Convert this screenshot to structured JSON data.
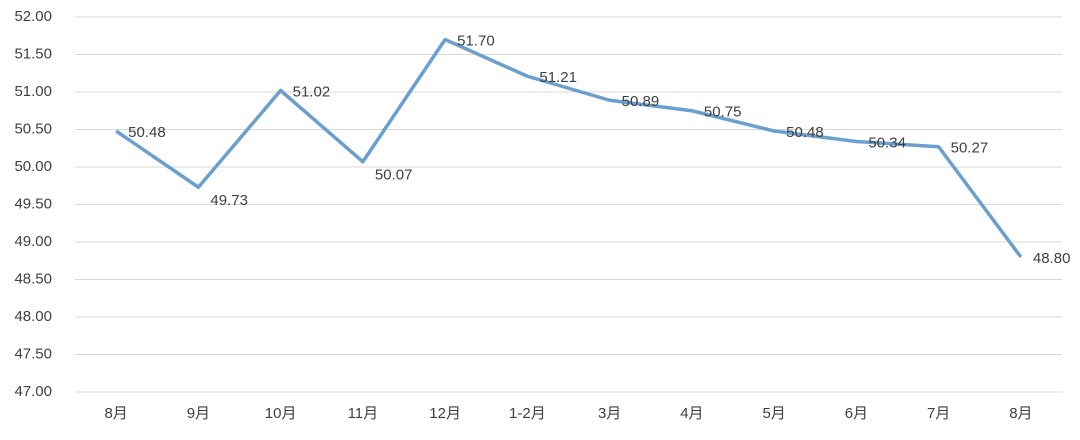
{
  "chart_data": {
    "type": "line",
    "categories": [
      "8月",
      "9月",
      "10月",
      "11月",
      "12月",
      "1-2月",
      "3月",
      "4月",
      "5月",
      "6月",
      "7月",
      "8月"
    ],
    "series": [
      {
        "color": "#6a9fcf",
        "values": [
          50.48,
          49.73,
          51.02,
          50.07,
          51.7,
          51.21,
          50.89,
          50.75,
          50.48,
          50.34,
          50.27,
          48.8
        ],
        "value_labels": [
          "50.48",
          "49.73",
          "51.02",
          "50.07",
          "51.70",
          "51.21",
          "50.89",
          "50.75",
          "50.48",
          "50.34",
          "50.27",
          "48.80"
        ]
      }
    ],
    "ylim": [
      47,
      52
    ],
    "yticks": [
      {
        "value": 47,
        "label": "47.00"
      },
      {
        "value": 47.5,
        "label": "47.50"
      },
      {
        "value": 48,
        "label": "48.00"
      },
      {
        "value": 48.5,
        "label": "48.50"
      },
      {
        "value": 49,
        "label": "49.00"
      },
      {
        "value": 49.5,
        "label": "49.50"
      },
      {
        "value": 50,
        "label": "50.00"
      },
      {
        "value": 50.5,
        "label": "50.50"
      },
      {
        "value": 51,
        "label": "51.00"
      },
      {
        "value": 51.5,
        "label": "51.50"
      },
      {
        "value": 52,
        "label": "52.00"
      }
    ],
    "grid": true
  }
}
